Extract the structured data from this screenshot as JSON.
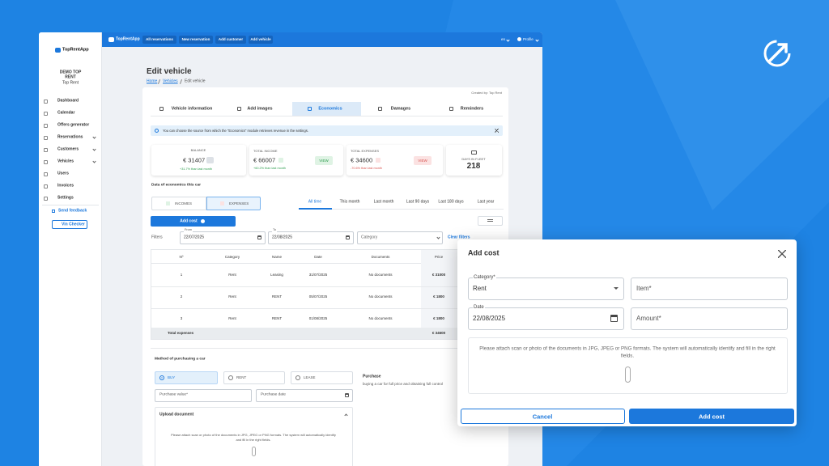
{
  "top_nav": {
    "brand": "TopRentApp",
    "items": [
      "All reservations",
      "New reservation",
      "Add customer",
      "Add vehicle"
    ],
    "language": "en",
    "profile": "Profile"
  },
  "sidebar": {
    "brand": "TopRentApp",
    "company": "DEMO TOP",
    "company_line2": "RENT",
    "user": "Top Rent",
    "menu": [
      "Dashboard",
      "Calendar",
      "Offers generator",
      "Reservations",
      "Customers",
      "Vehicles",
      "Users",
      "Invoices",
      "Settings"
    ],
    "send_feedback": "Send feedback",
    "vin_checker": "Vin Checker"
  },
  "page": {
    "title": "Edit vehicle",
    "breadcrumb": [
      "Home",
      "Vehicles",
      "Edit vehicle"
    ],
    "created_by": "Created by: Top Rent",
    "tabs": [
      "Vehicle information",
      "Add images",
      "Economics",
      "Damages",
      "Reminders"
    ],
    "info": "You can choose the source from which the \"Economics\" module retrieves revenue in the settings."
  },
  "stats": [
    {
      "label": "BALANCE",
      "value": "€ 31407",
      "change": "+31.7% than last month"
    },
    {
      "label": "TOTAL INCOME",
      "value": "€ 66007",
      "change": "+60.2% than last month",
      "button": "VIEW"
    },
    {
      "label": "TOTAL EXPENSES",
      "value": "€ 34600",
      "change": "-70.6% than last month",
      "button": "VIEW"
    },
    {
      "label": "DAYS IN FLEET",
      "value": "218"
    }
  ],
  "economics": {
    "heading": "Data of economics this car",
    "toggle": [
      "INCOMES",
      "EXPENSES"
    ],
    "periods": [
      "All time",
      "This month",
      "Last month",
      "Last 90 days",
      "Last 180 days",
      "Last year"
    ],
    "add_cost": "Add cost",
    "filters_label": "Filters",
    "from_label": "From",
    "from": "22/07/2025",
    "to_label": "To",
    "to": "22/08/2025",
    "category": "Category",
    "clear": "Clear filters"
  },
  "table": {
    "columns": [
      "Nº",
      "Category",
      "Name",
      "Date",
      "Documents",
      "Price"
    ],
    "rows": [
      [
        "1",
        "Rent",
        "Leasing",
        "31/07/2025",
        "No documents",
        "€ 31000"
      ],
      [
        "2",
        "Rent",
        "RENT",
        "05/07/2025",
        "No documents",
        "€ 1800"
      ],
      [
        "3",
        "Rent",
        "RENT",
        "01/08/2025",
        "No documents",
        "€ 1800"
      ]
    ],
    "total_label": "Total expenses",
    "total": "€ 34600"
  },
  "purchase": {
    "heading": "Method of purchasing a car",
    "options": [
      "BUY",
      "RENT",
      "LEASE"
    ],
    "info_title": "Purchase",
    "info_text": "buying a car for full price and obtaining full control",
    "value_field": "Purchase value*",
    "date_field": "Purchase date",
    "upload": "Upload document",
    "upload_text": "Please attach scan or photo of the documents in JPG, JPEG or PNG formats. The system will automatically identify and fill in the right fields."
  },
  "modal": {
    "title": "Add cost",
    "category_label": "Category*",
    "category": "Rent",
    "item": "Item*",
    "date_label": "Date",
    "date": "22/08/2025",
    "amount": "Amount*",
    "note": "Please attach scan or photo of the documents in JPG, JPEG or PNG formats. The system will automatically identify and fill in the right fields.",
    "cancel": "Cancel",
    "submit": "Add cost"
  }
}
